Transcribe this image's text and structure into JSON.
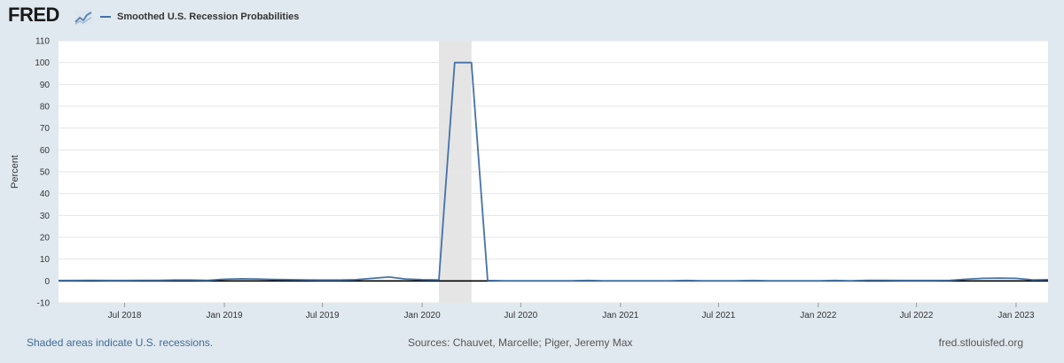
{
  "brand": {
    "logo_text": "FRED",
    "logo_icon": "fred-chart-icon"
  },
  "legend": {
    "label": "Smoothed U.S. Recession Probabilities",
    "color": "#4572a7"
  },
  "footer": {
    "note": "Shaded areas indicate U.S. recessions.",
    "sources": "Sources: Chauvet, Marcelle; Piger, Jeremy Max",
    "site": "fred.stlouisfed.org"
  },
  "chart_data": {
    "type": "line",
    "title": "",
    "xlabel": "",
    "ylabel": "Percent",
    "ylim": [
      -10,
      110
    ],
    "yticks": [
      -10,
      0,
      10,
      20,
      30,
      40,
      50,
      60,
      70,
      80,
      90,
      100,
      110
    ],
    "xlim": [
      "2018-03-01",
      "2023-03-01"
    ],
    "xticks": [
      {
        "date": "2018-07-01",
        "label": "Jul 2018"
      },
      {
        "date": "2019-01-01",
        "label": "Jan 2019"
      },
      {
        "date": "2019-07-01",
        "label": "Jul 2019"
      },
      {
        "date": "2020-01-01",
        "label": "Jan 2020"
      },
      {
        "date": "2020-07-01",
        "label": "Jul 2020"
      },
      {
        "date": "2021-01-01",
        "label": "Jan 2021"
      },
      {
        "date": "2021-07-01",
        "label": "Jul 2021"
      },
      {
        "date": "2022-01-01",
        "label": "Jan 2022"
      },
      {
        "date": "2022-07-01",
        "label": "Jul 2022"
      },
      {
        "date": "2023-01-01",
        "label": "Jan 2023"
      }
    ],
    "grid": true,
    "recessions": [
      {
        "start": "2020-02-01",
        "end": "2020-04-01"
      }
    ],
    "series": [
      {
        "name": "Smoothed U.S. Recession Probabilities",
        "color": "#4572a7",
        "x": [
          "2018-03-01",
          "2018-04-01",
          "2018-05-01",
          "2018-06-01",
          "2018-07-01",
          "2018-08-01",
          "2018-09-01",
          "2018-10-01",
          "2018-11-01",
          "2018-12-01",
          "2019-01-01",
          "2019-02-01",
          "2019-03-01",
          "2019-04-01",
          "2019-05-01",
          "2019-06-01",
          "2019-07-01",
          "2019-08-01",
          "2019-09-01",
          "2019-10-01",
          "2019-11-01",
          "2019-12-01",
          "2020-01-01",
          "2020-02-01",
          "2020-03-01",
          "2020-04-01",
          "2020-05-01",
          "2020-06-01",
          "2020-07-01",
          "2020-08-01",
          "2020-09-01",
          "2020-10-01",
          "2020-11-01",
          "2020-12-01",
          "2021-01-01",
          "2021-02-01",
          "2021-03-01",
          "2021-04-01",
          "2021-05-01",
          "2021-06-01",
          "2021-07-01",
          "2021-08-01",
          "2021-09-01",
          "2021-10-01",
          "2021-11-01",
          "2021-12-01",
          "2022-01-01",
          "2022-02-01",
          "2022-03-01",
          "2022-04-01",
          "2022-05-01",
          "2022-06-01",
          "2022-07-01",
          "2022-08-01",
          "2022-09-01",
          "2022-10-01",
          "2022-11-01",
          "2022-12-01",
          "2023-01-01",
          "2023-02-01",
          "2023-03-01"
        ],
        "values": [
          0.2,
          0.2,
          0.3,
          0.2,
          0.2,
          0.3,
          0.3,
          0.4,
          0.4,
          0.3,
          0.8,
          1.0,
          0.9,
          0.7,
          0.6,
          0.5,
          0.4,
          0.4,
          0.6,
          1.2,
          1.8,
          0.9,
          0.6,
          0.5,
          100,
          100,
          0.2,
          0.1,
          0.1,
          0.1,
          0.1,
          0.1,
          0.2,
          0.1,
          0.1,
          0.1,
          0.1,
          0.1,
          0.2,
          0.1,
          0.1,
          0.1,
          0.2,
          0.1,
          0.1,
          0.1,
          0.1,
          0.2,
          0.1,
          0.3,
          0.3,
          0.2,
          0.2,
          0.2,
          0.3,
          0.8,
          1.2,
          1.3,
          1.2,
          0.5,
          0.6
        ]
      }
    ]
  }
}
